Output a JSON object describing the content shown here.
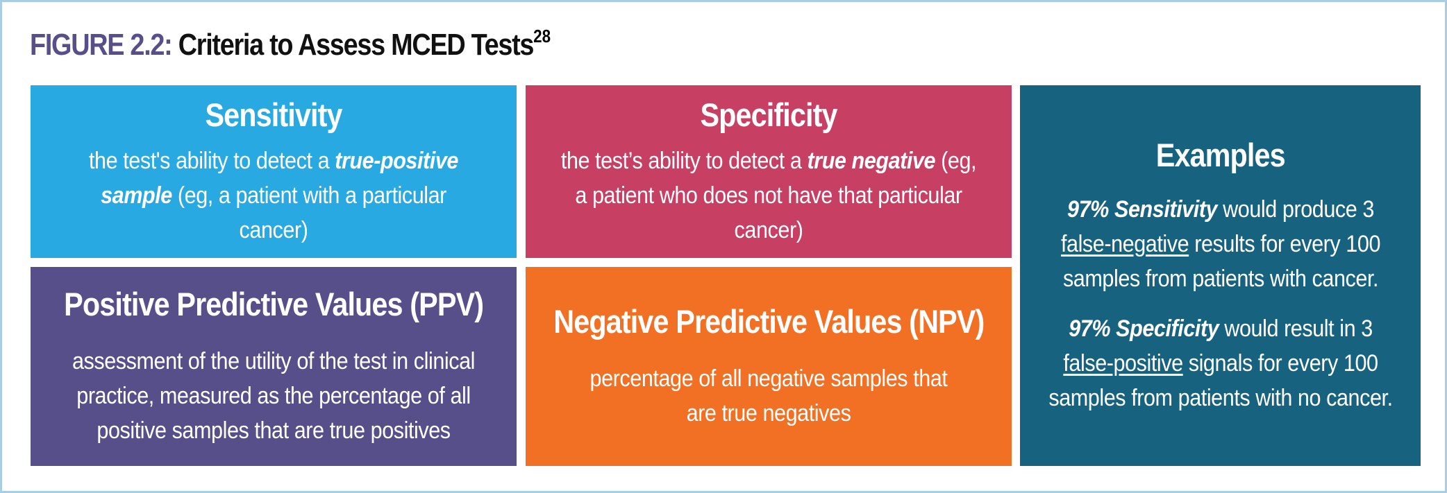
{
  "title": {
    "label": "FIGURE 2.2:",
    "text": "Criteria to Assess MCED Tests",
    "ref": "28"
  },
  "sensitivity": {
    "heading": "Sensitivity",
    "body_1": "the test's ability to detect a ",
    "body_em": "true-positive sample",
    "body_2": " (eg, a patient with a particular cancer)"
  },
  "specificity": {
    "heading": "Specificity",
    "body_1": "the test’s ability to detect a ",
    "body_em": "true negative",
    "body_2": " (eg, a patient who does not have that particular cancer)"
  },
  "ppv": {
    "heading": "Positive Predictive Values (PPV)",
    "body": "assessment of the utility of the test in clinical practice, measured as the percentage of all positive samples that are true positives"
  },
  "npv": {
    "heading": "Negative Predictive Values (NPV)",
    "body": "percentage of all negative samples that are true negatives"
  },
  "examples": {
    "heading": "Examples",
    "ex1_em": "97% Sensitivity",
    "ex1_a": " would produce 3 ",
    "ex1_u": "false-negative",
    "ex1_b": " results for every 100 samples from patients with cancer.",
    "ex2_em": "97% Specificity",
    "ex2_a": " would result in 3 ",
    "ex2_u": "false-positive",
    "ex2_b": " signals for every 100 samples from patients with no cancer."
  },
  "colors": {
    "sensitivity": "#28a9e1",
    "specificity": "#c73f63",
    "ppv": "#574f8a",
    "npv": "#f17024",
    "examples": "#17627f",
    "title_label": "#574f8a",
    "frame_border": "#a9cde3"
  }
}
